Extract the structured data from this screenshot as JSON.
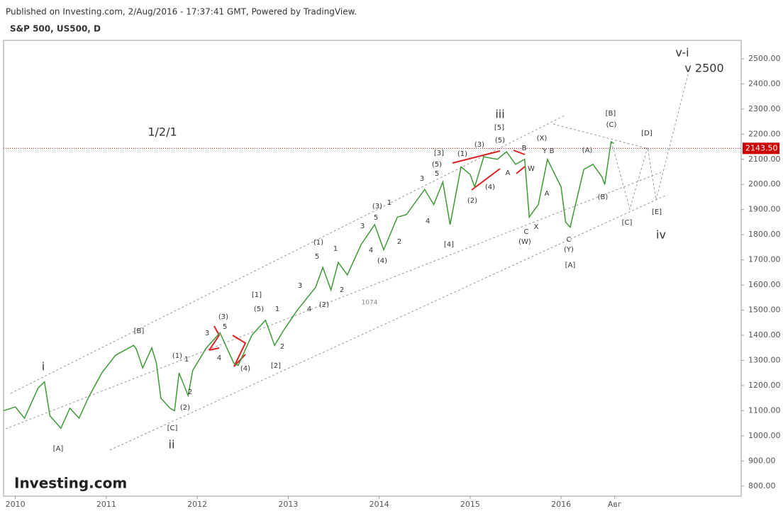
{
  "chart_data": {
    "type": "line",
    "header": "Published on Investing.com, 2/Aug/2016 - 17:37:41 GMT, Powered by TradingView.",
    "title": "S&P 500, US500, D",
    "logo": "Investing.com",
    "color": "#3d9a35",
    "x": [
      2009.87,
      2010.0,
      2010.1,
      2010.25,
      2010.32,
      2010.38,
      2010.5,
      2010.6,
      2010.7,
      2010.8,
      2010.95,
      2011.1,
      2011.3,
      2011.33,
      2011.4,
      2011.5,
      2011.55,
      2011.6,
      2011.7,
      2011.75,
      2011.8,
      2011.9,
      2011.95,
      2012.1,
      2012.25,
      2012.4,
      2012.45,
      2012.6,
      2012.75,
      2012.85,
      2012.95,
      2013.1,
      2013.3,
      2013.38,
      2013.47,
      2013.55,
      2013.65,
      2013.8,
      2013.95,
      2014.05,
      2014.2,
      2014.3,
      2014.5,
      2014.6,
      2014.7,
      2014.78,
      2014.9,
      2015.0,
      2015.05,
      2015.15,
      2015.3,
      2015.4,
      2015.5,
      2015.6,
      2015.65,
      2015.75,
      2015.85,
      2016.0,
      2016.05,
      2016.1,
      2016.25,
      2016.35,
      2016.45,
      2016.48,
      2016.55,
      2016.58
    ],
    "values": [
      1100,
      1115,
      1070,
      1190,
      1215,
      1080,
      1030,
      1110,
      1070,
      1150,
      1250,
      1320,
      1360,
      1345,
      1270,
      1350,
      1290,
      1150,
      1110,
      1100,
      1250,
      1160,
      1260,
      1350,
      1410,
      1290,
      1280,
      1400,
      1460,
      1360,
      1420,
      1500,
      1590,
      1670,
      1580,
      1690,
      1640,
      1760,
      1840,
      1740,
      1870,
      1880,
      1980,
      1920,
      2010,
      1840,
      2070,
      2040,
      1990,
      2110,
      2100,
      2130,
      2080,
      2100,
      1870,
      1920,
      2100,
      1990,
      1850,
      1830,
      2060,
      2080,
      2030,
      2000,
      2170,
      2163
    ],
    "last_price": {
      "value": 2143.5,
      "label": "2143.50"
    },
    "xlim": [
      2009.87,
      2017.98
    ],
    "xticks": [
      2010,
      2011,
      2012,
      2013,
      2014,
      2015,
      2016,
      {
        "value": 2016.59,
        "label": "Авг"
      }
    ],
    "ylim": [
      760,
      2573
    ],
    "yticks": [
      {
        "value": 800,
        "label": "800.00"
      },
      {
        "value": 900,
        "label": "900.00"
      },
      {
        "value": 1000,
        "label": "1000.00"
      },
      {
        "value": 1100,
        "label": "1100.00"
      },
      {
        "value": 1200,
        "label": "1200.00"
      },
      {
        "value": 1300,
        "label": "1300.00"
      },
      {
        "value": 1400,
        "label": "1400.00"
      },
      {
        "value": 1500,
        "label": "1500.00"
      },
      {
        "value": 1600,
        "label": "1600.00"
      },
      {
        "value": 1700,
        "label": "1700.00"
      },
      {
        "value": 1800,
        "label": "1800.00"
      },
      {
        "value": 1900,
        "label": "1900.00"
      },
      {
        "value": 2000,
        "label": "2000.00"
      },
      {
        "value": 2100,
        "label": "2100.00"
      },
      {
        "value": 2200,
        "label": "2200.00"
      },
      {
        "value": 2300,
        "label": "2300.00"
      },
      {
        "value": 2400,
        "label": "2400.00"
      },
      {
        "value": 2500,
        "label": "2500.00"
      }
    ],
    "annotations": [
      "i",
      "ii",
      "iii",
      "iv",
      "1/2/1",
      "v-i",
      "v 2500",
      "[A]",
      "[B]",
      "[C]",
      "(1)",
      "1",
      "2",
      "(2)",
      "3",
      "(3)",
      "5",
      "4",
      "(4)",
      "[1]",
      "(5)",
      "1",
      "2",
      "[2]",
      "3",
      "4",
      "(2)",
      "5",
      "(1)",
      "1",
      "2",
      "3",
      "4",
      "(4)",
      "5",
      "(3)",
      "1",
      "2",
      "4",
      "3",
      "5",
      "[3]",
      "(5)",
      "[4]",
      "(1)",
      "(2)",
      "(3)",
      "(4)",
      "[5]",
      "(5)",
      "A",
      "B",
      "W",
      "C",
      "X",
      "(W)",
      "(X)",
      "Y",
      "B",
      "A",
      "C",
      "(Y)",
      "[A]",
      "(A)",
      "(B)",
      "[B]",
      "(C)",
      "[D]",
      "[C]",
      "[E]",
      "1074"
    ]
  }
}
